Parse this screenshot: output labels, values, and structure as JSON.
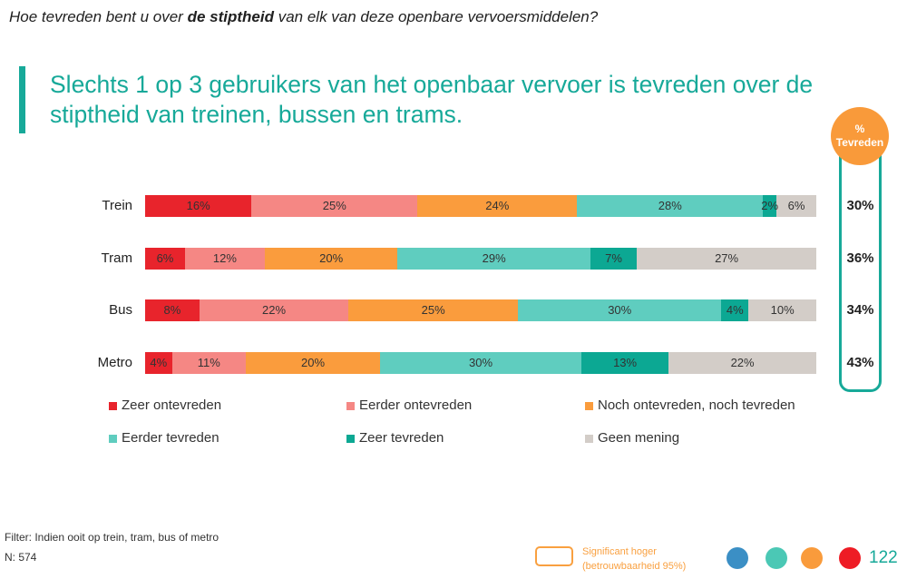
{
  "question": {
    "prefix": "Hoe tevreden bent u over ",
    "emphasis": "de stiptheid",
    "suffix": " van elk van deze openbare vervoersmiddelen?"
  },
  "headline": {
    "line1": "Slechts 1 op 3 gebruikers van het openbaar vervoer is tevreden over de",
    "line2": "stiptheid van treinen, bussen en trams."
  },
  "colors": {
    "accent": "#17a999",
    "highlight": "#f99a3a",
    "significance": "#f9a040"
  },
  "chart_data": {
    "type": "bar",
    "orientation": "horizontal",
    "stacked": true,
    "unit": "%",
    "categories": [
      "Trein",
      "Tram",
      "Bus",
      "Metro"
    ],
    "series": [
      {
        "name": "Zeer ontevreden",
        "color": "#e8242c",
        "values": [
          16,
          6,
          8,
          4
        ]
      },
      {
        "name": "Eerder ontevreden",
        "color": "#f58784",
        "values": [
          25,
          12,
          22,
          11
        ]
      },
      {
        "name": "Noch ontevreden, noch tevreden",
        "color": "#fa9c3d",
        "values": [
          24,
          20,
          25,
          20
        ]
      },
      {
        "name": "Eerder tevreden",
        "color": "#5fcdbf",
        "values": [
          28,
          29,
          30,
          30
        ]
      },
      {
        "name": "Zeer tevreden",
        "color": "#0ca893",
        "values": [
          2,
          7,
          4,
          13
        ]
      },
      {
        "name": "Geen mening",
        "color": "#d3cdc8",
        "values": [
          6,
          27,
          10,
          22
        ]
      }
    ],
    "satisfied": {
      "header_symbol": "%",
      "header_label": "Tevreden",
      "values": [
        30,
        36,
        34,
        43
      ]
    },
    "legend_position": "bottom"
  },
  "footer": {
    "filter": "Filter: Indien ooit op trein, tram, bus of metro",
    "sample_size": "N: 574",
    "significance_line1": "Significant hoger",
    "significance_line2": "(betrouwbaarheid 95%)",
    "page_number": "122"
  },
  "nav_dot_colors": [
    "#3b8fc5",
    "#4bc8b5",
    "#f99b3c",
    "#ee1c25"
  ]
}
